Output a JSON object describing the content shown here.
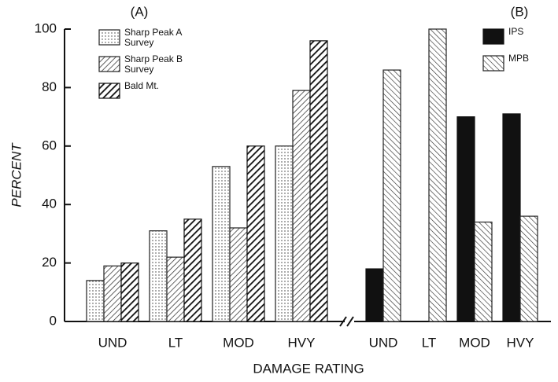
{
  "chart_data": [
    {
      "type": "bar",
      "title": "(A)",
      "y_label": "PERCENT",
      "x_label": "DAMAGE RATING",
      "categories": [
        "UND",
        "LT",
        "MOD",
        "HVY"
      ],
      "series": [
        {
          "name": "Sharp Peak A Survey",
          "color": "#222222",
          "pattern": "dots",
          "values": [
            14,
            31,
            53,
            60
          ]
        },
        {
          "name": "Sharp Peak B Survey",
          "color": "#222222",
          "pattern": "hatch",
          "values": [
            19,
            22,
            32,
            79
          ]
        },
        {
          "name": "Bald Mt.",
          "color": "#111111",
          "pattern": "heavy-hatch",
          "values": [
            20,
            35,
            60,
            96
          ]
        }
      ],
      "ylim": [
        0,
        100
      ],
      "yticks": [
        0,
        20,
        40,
        60,
        80,
        100
      ]
    },
    {
      "type": "bar",
      "title": "(B)",
      "categories": [
        "UND",
        "LT",
        "MOD",
        "HVY"
      ],
      "series": [
        {
          "name": "IPS",
          "color": "#111111",
          "pattern": "solid",
          "values": [
            18,
            0,
            70,
            71
          ]
        },
        {
          "name": "MPB",
          "color": "#222222",
          "pattern": "backhatch",
          "values": [
            86,
            100,
            34,
            36
          ]
        }
      ],
      "ylim": [
        0,
        100
      ]
    }
  ]
}
